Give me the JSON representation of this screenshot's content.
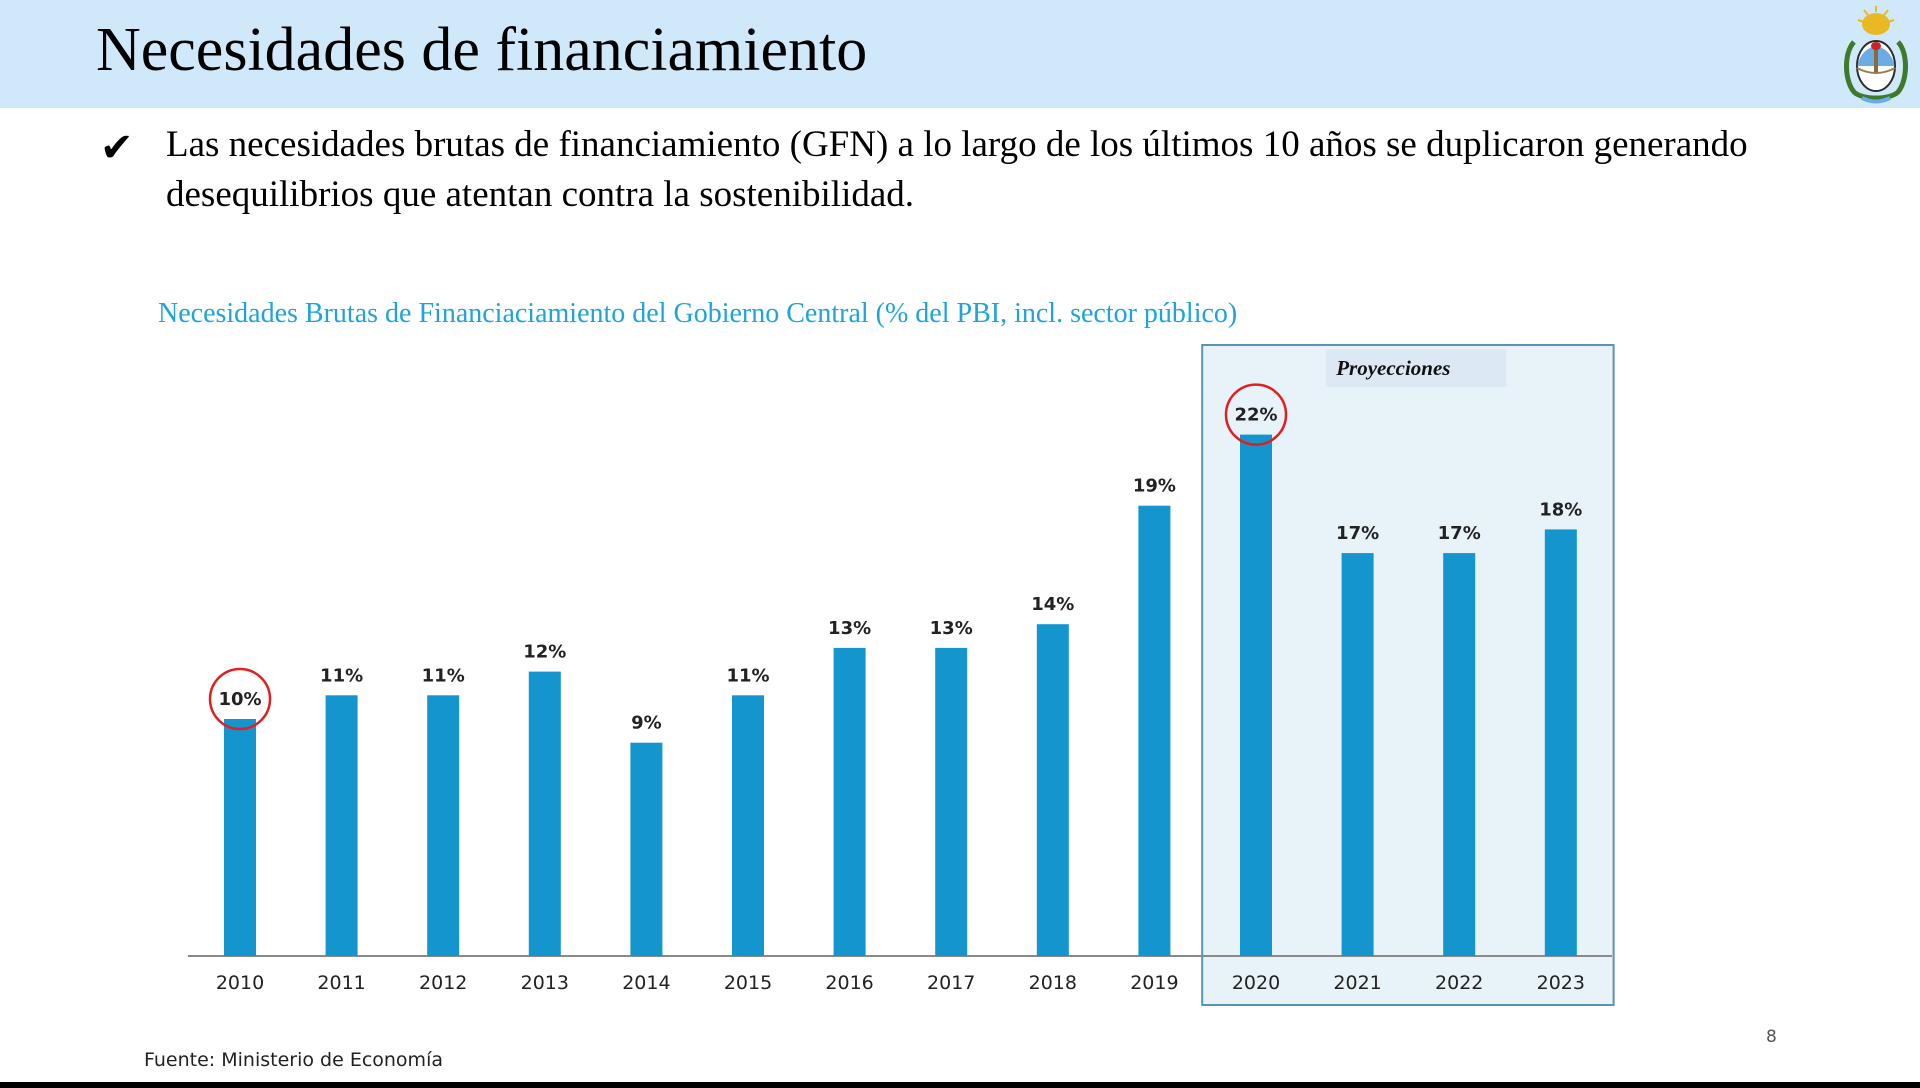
{
  "slide": {
    "title": "Necesidades de financiamiento",
    "bullet_mark": "✔",
    "bullet_text": "Las necesidades brutas de financiamiento (GFN) a lo largo de los últimos 10 años se duplicaron generando desequilibrios que atentan contra la sostenibilidad.",
    "source": "Fuente: Ministerio de Economía",
    "page_number": "8"
  },
  "emblem": {
    "icon": "argentina-coat-of-arms-icon"
  },
  "colors": {
    "title_bar": "#cfe9fb",
    "bar": "#1595cd",
    "chart_title": "#1fa3dd",
    "projection_fill": "#e8f2f9",
    "projection_border": "#5b93b5",
    "projection_label_bg": "#dce9f4",
    "highlight_circle": "#e02020"
  },
  "chart_data": {
    "type": "bar",
    "title": "Necesidades Brutas de Financiaciamiento del Gobierno Central (% del PBI, incl. sector público)",
    "categories": [
      "2010",
      "2011",
      "2012",
      "2013",
      "2014",
      "2015",
      "2016",
      "2017",
      "2018",
      "2019",
      "2020",
      "2021",
      "2022",
      "2023"
    ],
    "values": [
      10,
      11,
      11,
      12,
      9,
      11,
      13,
      13,
      14,
      19,
      22,
      17,
      17,
      18
    ],
    "data_labels": [
      "10%",
      "11%",
      "11%",
      "12%",
      "9%",
      "11%",
      "13%",
      "13%",
      "14%",
      "19%",
      "22%",
      "17%",
      "17%",
      "18%"
    ],
    "unit": "%",
    "xlabel": "",
    "ylabel": "",
    "ylim": [
      0,
      24
    ],
    "grid": false,
    "projection": {
      "label": "Proyecciones",
      "from": "2020",
      "to": "2023"
    },
    "highlighted": [
      "2010",
      "2020"
    ]
  }
}
